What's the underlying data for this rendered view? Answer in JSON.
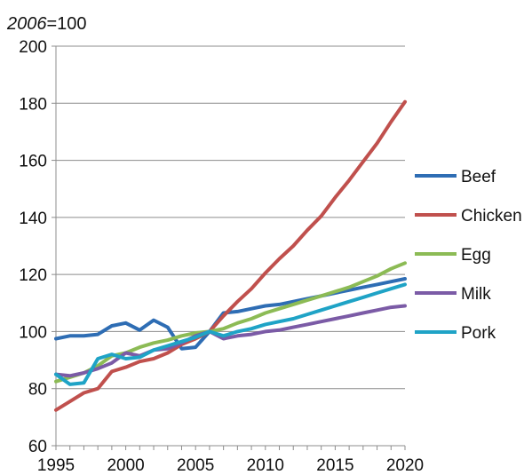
{
  "chart_data": {
    "type": "line",
    "unit_label": {
      "italic": "2006",
      "rest": "=100"
    },
    "xlabel": "",
    "ylabel": "",
    "xlim": [
      1995,
      2020
    ],
    "ylim": [
      60,
      200
    ],
    "x_ticks": [
      1995,
      2000,
      2005,
      2010,
      2015,
      2020
    ],
    "y_ticks": [
      60,
      80,
      100,
      120,
      140,
      160,
      180,
      200
    ],
    "grid": "horizontal",
    "legend": "right",
    "x": [
      1995,
      1996,
      1997,
      1998,
      1999,
      2000,
      2001,
      2002,
      2003,
      2004,
      2005,
      2006,
      2007,
      2008,
      2009,
      2010,
      2011,
      2012,
      2013,
      2014,
      2015,
      2016,
      2017,
      2018,
      2019,
      2020
    ],
    "series": [
      {
        "name": "Beef",
        "color": "#2E6DB4",
        "values": [
          97.5,
          98.5,
          98.5,
          99,
          102,
          103,
          100.5,
          104,
          101.5,
          94,
          94.5,
          100,
          106.5,
          107,
          108,
          109,
          109.5,
          110.5,
          111.5,
          112.5,
          113.5,
          114.5,
          115.5,
          116.5,
          117.5,
          118.5
        ]
      },
      {
        "name": "Chicken",
        "color": "#C0504D",
        "values": [
          72.5,
          75.5,
          78.5,
          80,
          86,
          87.5,
          89.5,
          90.5,
          92.5,
          95.5,
          97.5,
          100,
          105.5,
          110.5,
          115,
          120.5,
          125.5,
          130,
          135.5,
          140.5,
          147,
          153,
          159.5,
          166,
          173.5,
          180.5
        ]
      },
      {
        "name": "Egg",
        "color": "#8CBB55",
        "values": [
          82.5,
          84,
          85.5,
          88,
          91.5,
          92.5,
          94.5,
          96,
          97,
          98.5,
          99.5,
          100,
          101,
          103,
          104.5,
          106.5,
          108,
          109.5,
          111,
          112.5,
          114,
          115.5,
          117.5,
          119.5,
          122,
          124
        ]
      },
      {
        "name": "Milk",
        "color": "#7B5BA6",
        "values": [
          85,
          84.5,
          85.5,
          87,
          89,
          92.5,
          91.5,
          93.5,
          94,
          96,
          98.5,
          100,
          97.5,
          98.5,
          99,
          100,
          100.5,
          101.5,
          102.5,
          103.5,
          104.5,
          105.5,
          106.5,
          107.5,
          108.5,
          109
        ]
      },
      {
        "name": "Pork",
        "color": "#1FA3C6",
        "values": [
          85,
          81.5,
          82,
          90.5,
          92,
          90.5,
          91,
          93.5,
          95,
          96.5,
          98,
          100,
          98.5,
          100,
          101,
          102.5,
          103.5,
          104.5,
          106,
          107.5,
          109,
          110.5,
          112,
          113.5,
          115,
          116.5
        ]
      }
    ]
  }
}
